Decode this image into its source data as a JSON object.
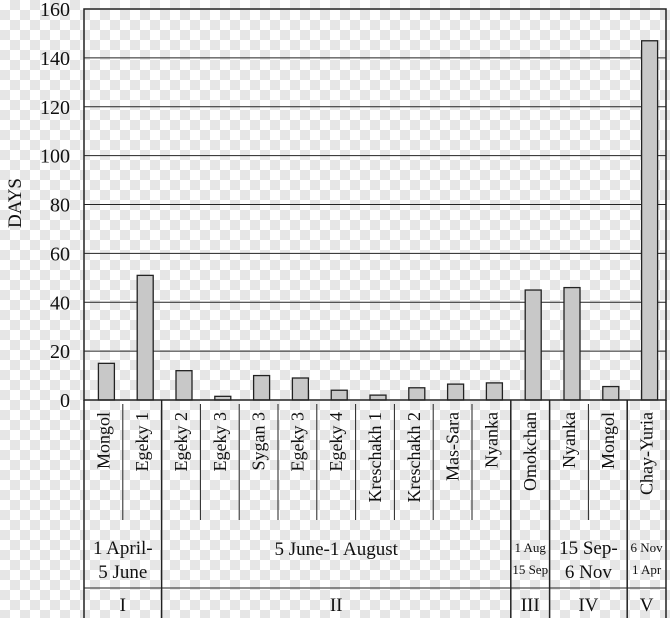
{
  "chart_data": {
    "type": "bar",
    "ylabel": "DAYS",
    "ylim": [
      0,
      160
    ],
    "yticks": [
      0,
      20,
      40,
      60,
      80,
      100,
      120,
      140,
      160
    ],
    "grid": true,
    "bar_color": "#c8c8c8",
    "categories": [
      "Mongol",
      "Egeky 1",
      "Egeky 2",
      "Egeky 3",
      "Sygan 3",
      "Egeky 3",
      "Egeky 4",
      "Kreschakh 1",
      "Kreschakh 2",
      "Mas-Sara",
      "Nyanka",
      "Omokchan",
      "Nyanka",
      "Mongol",
      "Chay-Yuria"
    ],
    "values": [
      15,
      51,
      12,
      1.5,
      10,
      9,
      4,
      2,
      5,
      6.5,
      7,
      45,
      46,
      5.5,
      147
    ],
    "groups": [
      {
        "roman": "I",
        "period_lines": [
          "1 April-",
          "5 June"
        ],
        "small": false,
        "start": 0,
        "end": 1
      },
      {
        "roman": "II",
        "period_lines": [
          "5 June-1 August"
        ],
        "small": false,
        "start": 2,
        "end": 10
      },
      {
        "roman": "III",
        "period_lines": [
          "1 Aug",
          "15 Sep"
        ],
        "small": true,
        "start": 11,
        "end": 11
      },
      {
        "roman": "IV",
        "period_lines": [
          "15 Sep-",
          "6 Nov"
        ],
        "small": false,
        "start": 12,
        "end": 13
      },
      {
        "roman": "V",
        "period_lines": [
          "6 Nov",
          "1 Apr"
        ],
        "small": true,
        "start": 14,
        "end": 14
      }
    ]
  }
}
